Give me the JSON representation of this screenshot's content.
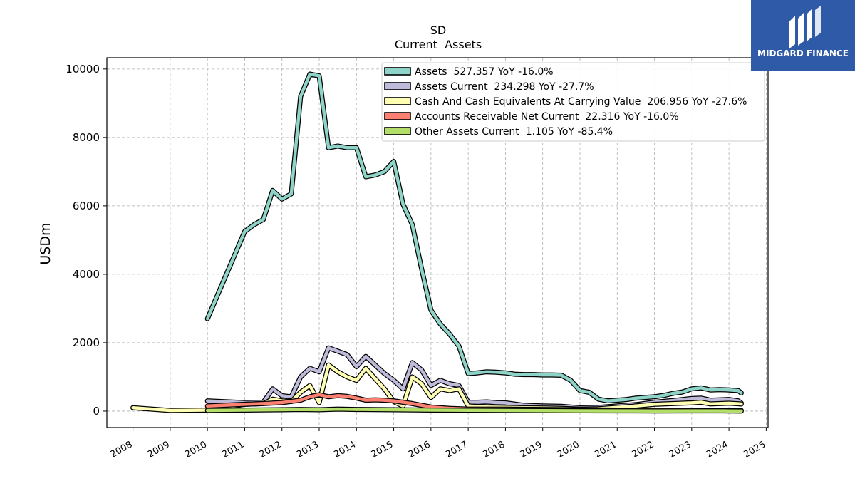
{
  "logo": {
    "text": "MIDGARD FINANCE",
    "icon": "midgard-logo-icon",
    "color": "#2f5aa8"
  },
  "chart_data": {
    "type": "line",
    "title": "SD",
    "subtitle": "Current  Assets",
    "ylabel": "USDm",
    "xlabel": "",
    "xlim": [
      2007.3,
      2025.05
    ],
    "ylim": [
      -480,
      10330
    ],
    "yticks": [
      0,
      2000,
      4000,
      6000,
      8000,
      10000
    ],
    "xticks": [
      2008,
      2009,
      2010,
      2011,
      2012,
      2013,
      2014,
      2015,
      2016,
      2017,
      2018,
      2019,
      2020,
      2021,
      2022,
      2023,
      2024,
      2025
    ],
    "grid": true,
    "legend_position": "top-right",
    "series": [
      {
        "name": "Assets  527.357 YoY -16.0%",
        "color": "#8dd3c7",
        "x": [
          2010.0,
          2011.0,
          2011.25,
          2011.5,
          2011.75,
          2012.0,
          2012.25,
          2012.5,
          2012.75,
          2013.0,
          2013.25,
          2013.5,
          2013.75,
          2014.0,
          2014.25,
          2014.5,
          2014.75,
          2015.0,
          2015.25,
          2015.5,
          2015.75,
          2016.0,
          2016.25,
          2016.5,
          2016.75,
          2017.0,
          2017.25,
          2017.5,
          2017.75,
          2018.0,
          2018.25,
          2018.5,
          2018.75,
          2019.0,
          2019.25,
          2019.5,
          2019.75,
          2020.0,
          2020.25,
          2020.5,
          2020.75,
          2021.0,
          2021.25,
          2021.5,
          2021.75,
          2022.0,
          2022.25,
          2022.5,
          2022.75,
          2023.0,
          2023.25,
          2023.5,
          2023.75,
          2024.0,
          2024.25,
          2024.33
        ],
        "y": [
          2700,
          5250,
          5450,
          5600,
          6450,
          6200,
          6350,
          9200,
          9850,
          9800,
          7700,
          7750,
          7700,
          7700,
          6850,
          6900,
          7000,
          7300,
          6050,
          5450,
          4150,
          2950,
          2550,
          2250,
          1900,
          1100,
          1120,
          1150,
          1140,
          1120,
          1080,
          1070,
          1070,
          1060,
          1060,
          1050,
          900,
          600,
          550,
          350,
          300,
          320,
          340,
          380,
          400,
          420,
          460,
          520,
          560,
          650,
          680,
          620,
          630,
          620,
          600,
          530
        ]
      },
      {
        "name": "Assets Current  234.298 YoY -27.7%",
        "color": "#bebada",
        "x": [
          2010.0,
          2011.0,
          2011.5,
          2011.75,
          2012.0,
          2012.25,
          2012.5,
          2012.75,
          2013.0,
          2013.25,
          2013.5,
          2013.75,
          2014.0,
          2014.25,
          2014.5,
          2014.75,
          2015.0,
          2015.25,
          2015.5,
          2015.75,
          2016.0,
          2016.25,
          2016.5,
          2016.75,
          2017.0,
          2017.25,
          2017.5,
          2017.75,
          2018.0,
          2018.5,
          2019.0,
          2019.5,
          2020.0,
          2020.5,
          2021.0,
          2021.5,
          2022.0,
          2022.5,
          2023.0,
          2023.25,
          2023.5,
          2023.75,
          2024.0,
          2024.25,
          2024.33
        ],
        "y": [
          300,
          250,
          260,
          650,
          450,
          420,
          1000,
          1250,
          1150,
          1850,
          1750,
          1650,
          1300,
          1600,
          1350,
          1100,
          900,
          650,
          1420,
          1200,
          750,
          900,
          800,
          750,
          260,
          260,
          270,
          250,
          240,
          170,
          150,
          140,
          100,
          110,
          150,
          190,
          260,
          310,
          370,
          380,
          320,
          330,
          340,
          300,
          234
        ]
      },
      {
        "name": "Cash And Cash Equivalents At Carrying Value  206.956 YoY -27.6%",
        "color": "#ffffb3",
        "x": [
          2008.0,
          2009.0,
          2010.0,
          2011.0,
          2011.5,
          2011.75,
          2012.0,
          2012.25,
          2012.5,
          2012.75,
          2013.0,
          2013.25,
          2013.5,
          2013.75,
          2014.0,
          2014.25,
          2014.5,
          2014.75,
          2015.0,
          2015.25,
          2015.5,
          2015.75,
          2016.0,
          2016.25,
          2016.5,
          2016.75,
          2017.0,
          2017.5,
          2018.0,
          2018.5,
          2019.0,
          2019.5,
          2020.0,
          2020.5,
          2021.0,
          2021.5,
          2022.0,
          2022.5,
          2023.0,
          2023.25,
          2023.5,
          2023.75,
          2024.0,
          2024.25,
          2024.33
        ],
        "y": [
          100,
          20,
          30,
          200,
          220,
          350,
          300,
          280,
          550,
          750,
          250,
          1350,
          1150,
          1000,
          900,
          1250,
          950,
          650,
          280,
          150,
          1000,
          800,
          400,
          650,
          600,
          650,
          150,
          120,
          110,
          100,
          90,
          80,
          60,
          70,
          110,
          150,
          200,
          220,
          240,
          260,
          210,
          220,
          230,
          215,
          207
        ]
      },
      {
        "name": "Accounts Receivable Net Current  22.316 YoY -16.0%",
        "color": "#fb8072",
        "x": [
          2010.0,
          2011.0,
          2011.5,
          2012.0,
          2012.5,
          2012.75,
          2013.0,
          2013.25,
          2013.5,
          2013.75,
          2014.0,
          2014.25,
          2014.5,
          2014.75,
          2015.0,
          2015.5,
          2016.0,
          2016.5,
          2017.0,
          2017.5,
          2018.0,
          2019.0,
          2020.0,
          2021.0,
          2022.0,
          2023.0,
          2023.5,
          2024.0,
          2024.33
        ],
        "y": [
          150,
          200,
          220,
          250,
          320,
          420,
          480,
          420,
          450,
          430,
          380,
          320,
          330,
          320,
          300,
          220,
          120,
          80,
          60,
          60,
          60,
          50,
          40,
          30,
          30,
          30,
          25,
          25,
          22
        ]
      },
      {
        "name": "Other Assets Current  1.105 YoY -85.4%",
        "color": "#b3de69",
        "x": [
          2010.0,
          2011.0,
          2012.0,
          2012.5,
          2013.0,
          2013.5,
          2014.0,
          2015.0,
          2016.0,
          2017.0,
          2018.0,
          2019.0,
          2020.0,
          2021.0,
          2022.0,
          2023.0,
          2023.5,
          2024.0,
          2024.33
        ],
        "y": [
          20,
          30,
          40,
          50,
          40,
          60,
          50,
          40,
          30,
          25,
          20,
          15,
          10,
          8,
          6,
          8,
          7,
          5,
          1
        ]
      }
    ]
  }
}
